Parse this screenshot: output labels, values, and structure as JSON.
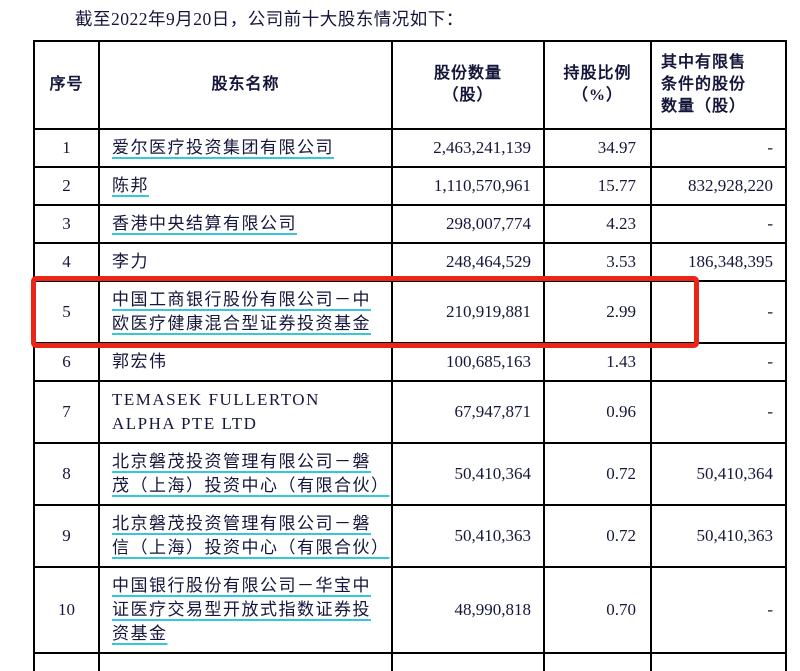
{
  "title": "截至2022年9月20日，公司前十大股东情况如下：",
  "table": {
    "headers": {
      "no": "序号",
      "name": "股东名称",
      "shares": "股份数量\n（股）",
      "pct": "持股比例\n（%）",
      "restricted": "其中有限售\n条件的股份\n数量（股）"
    },
    "rows": [
      {
        "no": "1",
        "name": "爱尔医疗投资集团有限公司",
        "underlined": true,
        "shares": "2,463,241,139",
        "pct": "34.97",
        "restricted": "-",
        "highlighted": false
      },
      {
        "no": "2",
        "name": "陈邦",
        "underlined": true,
        "shares": "1,110,570,961",
        "pct": "15.77",
        "restricted": "832,928,220",
        "highlighted": false
      },
      {
        "no": "3",
        "name": "香港中央结算有限公司",
        "underlined": true,
        "shares": "298,007,774",
        "pct": "4.23",
        "restricted": "-",
        "highlighted": false
      },
      {
        "no": "4",
        "name": "李力",
        "underlined": false,
        "shares": "248,464,529",
        "pct": "3.53",
        "restricted": "186,348,395",
        "highlighted": false
      },
      {
        "no": "5",
        "name": "中国工商银行股份有限公司－中欧医疗健康混合型证券投资基金",
        "underlined": true,
        "shares": "210,919,881",
        "pct": "2.99",
        "restricted": "-",
        "highlighted": true
      },
      {
        "no": "6",
        "name": "郭宏伟",
        "underlined": false,
        "shares": "100,685,163",
        "pct": "1.43",
        "restricted": "-",
        "highlighted": false
      },
      {
        "no": "7",
        "name": "TEMASEK FULLERTON ALPHA PTE LTD",
        "underlined": false,
        "shares": "67,947,871",
        "pct": "0.96",
        "restricted": "-",
        "highlighted": false
      },
      {
        "no": "8",
        "name": "北京磐茂投资管理有限公司－磐茂（上海）投资中心（有限合伙）",
        "underlined": true,
        "shares": "50,410,364",
        "pct": "0.72",
        "restricted": "50,410,364",
        "highlighted": false
      },
      {
        "no": "9",
        "name": "北京磐茂投资管理有限公司－磐信（上海）投资中心（有限合伙）",
        "underlined": true,
        "shares": "50,410,363",
        "pct": "0.72",
        "restricted": "50,410,363",
        "highlighted": false
      },
      {
        "no": "10",
        "name": "中国银行股份有限公司－华宝中证医疗交易型开放式指数证券投资基金",
        "underlined": true,
        "shares": "48,990,818",
        "pct": "0.70",
        "restricted": "-",
        "highlighted": false
      }
    ]
  },
  "highlight": {
    "highlighted_row_no": "5",
    "color": "#ea2517"
  },
  "colors": {
    "text": "#15163a",
    "underline": "#38c6da",
    "table_border": "#000000",
    "background": "#ffffff"
  }
}
